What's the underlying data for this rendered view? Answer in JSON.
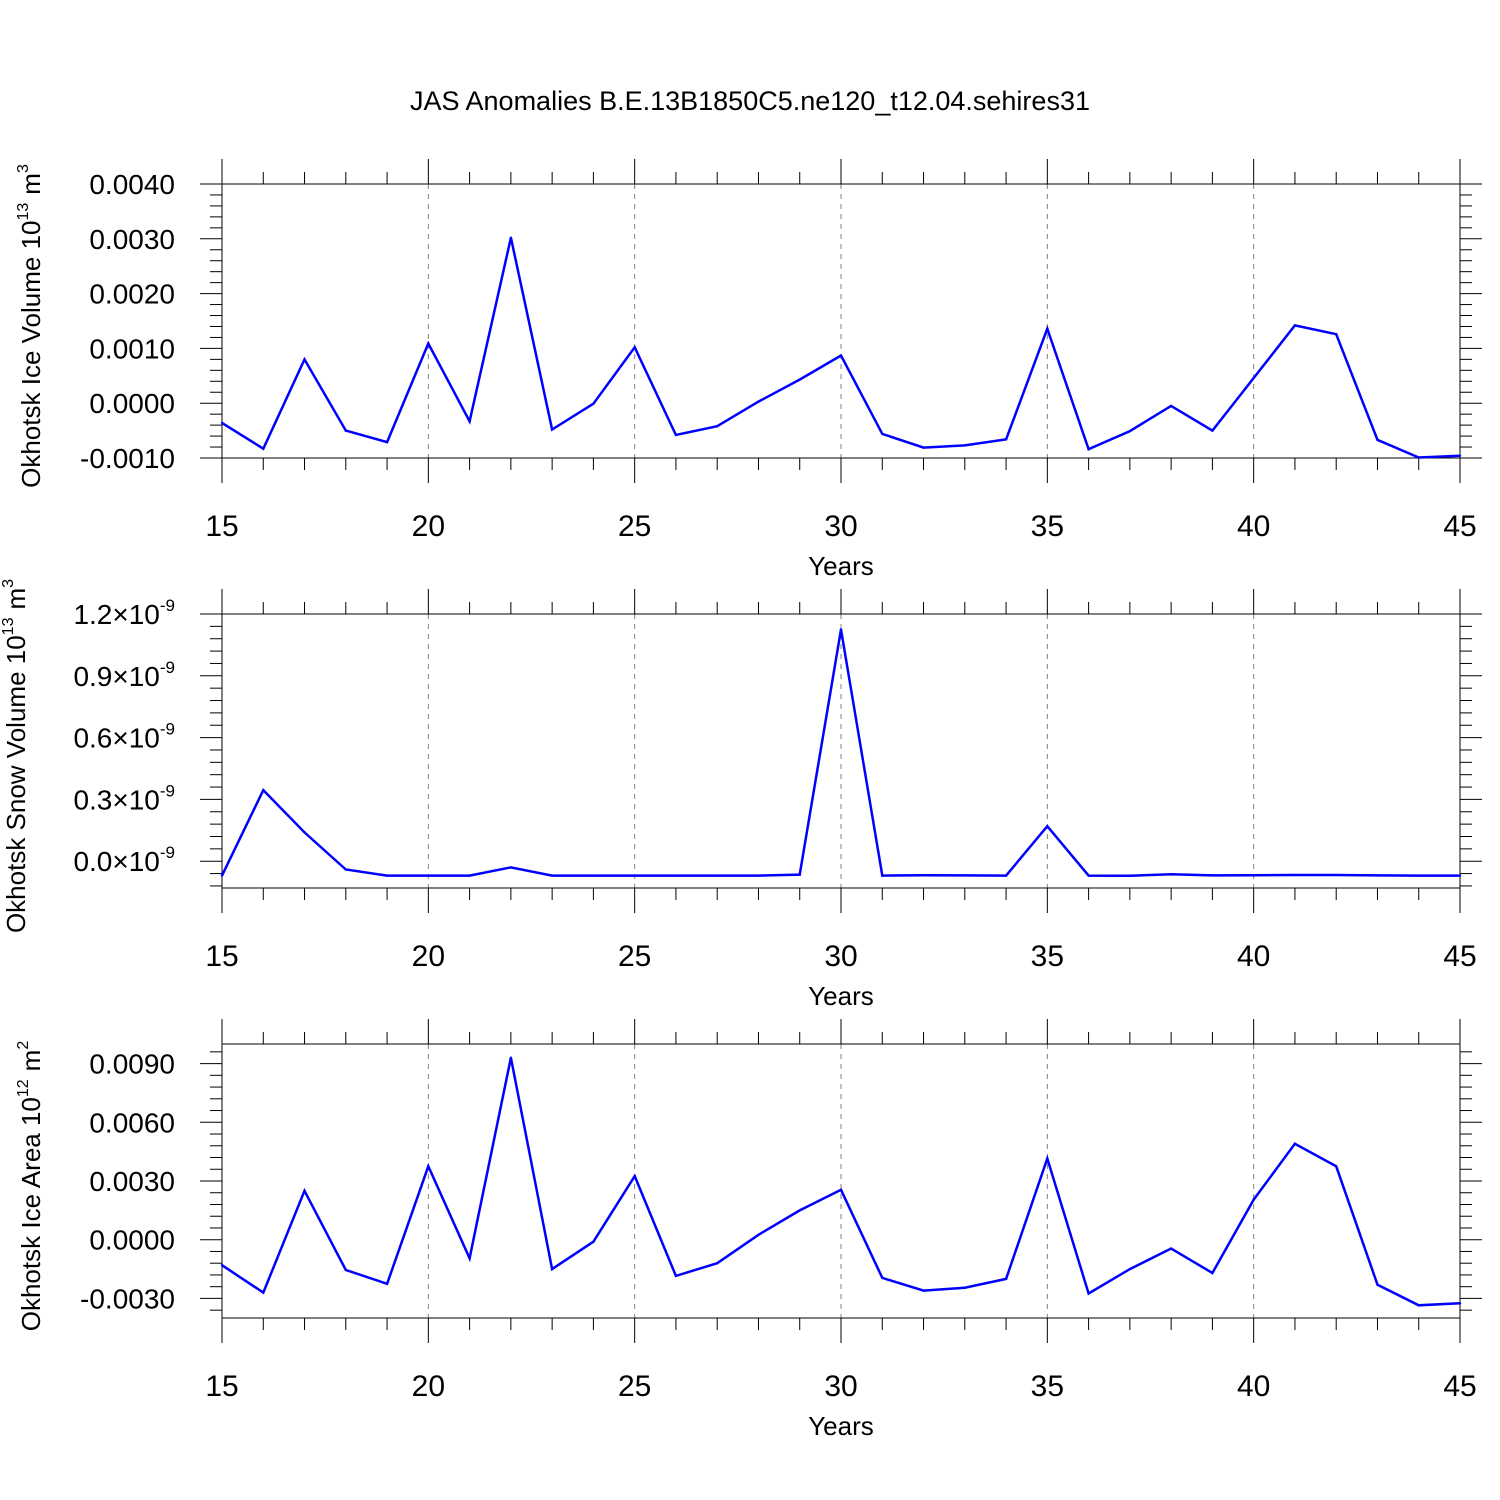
{
  "title": "JAS Anomalies B.E.13B1850C5.ne120_t12.04.sehires31",
  "colors": {
    "line": "#0000ff",
    "axis": "#000000",
    "grid": "#7f7f7f"
  },
  "chart_data": [
    {
      "type": "line",
      "ylabel": {
        "text": "Okhotsk Ice Volume 10",
        "exp": "13",
        "unit": "m",
        "unit_exp": "3"
      },
      "xlabel": "Years",
      "xlim": [
        15,
        45
      ],
      "ylim": [
        -0.001,
        0.004
      ],
      "x_ticks": [
        "15",
        "20",
        "25",
        "30",
        "35",
        "40",
        "45"
      ],
      "y_ticks": [
        {
          "value": 0.004,
          "label": "0.0040"
        },
        {
          "value": 0.003,
          "label": "0.0030"
        },
        {
          "value": 0.002,
          "label": "0.0020"
        },
        {
          "value": 0.001,
          "label": "0.0010"
        },
        {
          "value": 0.0,
          "label": "0.0000"
        },
        {
          "value": -0.001,
          "label": "-0.0010"
        }
      ],
      "grid": "x-dashed",
      "x": [
        15,
        16,
        17,
        18,
        19,
        20,
        21,
        22,
        23,
        24,
        25,
        26,
        27,
        28,
        29,
        30,
        31,
        32,
        33,
        34,
        35,
        36,
        37,
        38,
        39,
        40,
        41,
        42,
        43,
        44,
        45
      ],
      "values": [
        -0.00036,
        -0.00083,
        0.0008,
        -0.0005,
        -0.00071,
        0.00109,
        -0.00033,
        0.00302,
        -0.00048,
        -1e-05,
        0.00102,
        -0.00058,
        -0.00042,
        3e-05,
        0.00043,
        0.00087,
        -0.00056,
        -0.00081,
        -0.00077,
        -0.00066,
        0.00136,
        -0.00084,
        -0.00051,
        -5e-05,
        -0.0005,
        0.00046,
        0.00142,
        0.00126,
        -0.00067,
        -0.00099,
        -0.00096
      ]
    },
    {
      "type": "line",
      "ylabel": {
        "text": "Okhotsk Snow Volume 10",
        "exp": "13",
        "unit": "m",
        "unit_exp": "3"
      },
      "xlabel": "Years",
      "xlim": [
        15,
        45
      ],
      "ylim": [
        -1.3e-10,
        1.2e-09
      ],
      "x_ticks": [
        "15",
        "20",
        "25",
        "30",
        "35",
        "40",
        "45"
      ],
      "y_ticks": [
        {
          "value": 1.2e-09,
          "label": "1.2",
          "exp": "-9"
        },
        {
          "value": 9e-10,
          "label": "0.9",
          "exp": "-9"
        },
        {
          "value": 6e-10,
          "label": "0.6",
          "exp": "-9"
        },
        {
          "value": 3e-10,
          "label": "0.3",
          "exp": "-9"
        },
        {
          "value": 0.0,
          "label": "0.0",
          "exp": "-9"
        }
      ],
      "y_tick_times": "×10",
      "grid": "x-dashed",
      "x": [
        15,
        16,
        17,
        18,
        19,
        20,
        21,
        22,
        23,
        24,
        25,
        26,
        27,
        28,
        29,
        30,
        31,
        32,
        33,
        34,
        35,
        36,
        37,
        38,
        39,
        40,
        41,
        42,
        43,
        44,
        45
      ],
      "values": [
        -7e-11,
        3.45e-10,
        1.4e-10,
        -4e-11,
        -7e-11,
        -7e-11,
        -7e-11,
        -3e-11,
        -7e-11,
        -7e-11,
        -7e-11,
        -7e-11,
        -7e-11,
        -7e-11,
        -6.5e-11,
        1.125e-09,
        -7e-11,
        -6.8e-11,
        -6.9e-11,
        -7e-11,
        1.7e-10,
        -7e-11,
        -7.1e-11,
        -6.3e-11,
        -6.9e-11,
        -6.8e-11,
        -6.7e-11,
        -6.7e-11,
        -6.9e-11,
        -7e-11,
        -7e-11
      ]
    },
    {
      "type": "line",
      "ylabel": {
        "text": "Okhotsk Ice Area 10",
        "exp": "12",
        "unit": "m",
        "unit_exp": "2"
      },
      "xlabel": "Years",
      "xlim": [
        15,
        45
      ],
      "ylim": [
        -0.004,
        0.01
      ],
      "x_ticks": [
        "15",
        "20",
        "25",
        "30",
        "35",
        "40",
        "45"
      ],
      "y_ticks": [
        {
          "value": 0.009,
          "label": "0.0090"
        },
        {
          "value": 0.006,
          "label": "0.0060"
        },
        {
          "value": 0.003,
          "label": "0.0030"
        },
        {
          "value": 0.0,
          "label": "0.0000"
        },
        {
          "value": -0.003,
          "label": "-0.0030"
        }
      ],
      "grid": "x-dashed",
      "x": [
        15,
        16,
        17,
        18,
        19,
        20,
        21,
        22,
        23,
        24,
        25,
        26,
        27,
        28,
        29,
        30,
        31,
        32,
        33,
        34,
        35,
        36,
        37,
        38,
        39,
        40,
        41,
        42,
        43,
        44,
        45
      ],
      "values": [
        -0.0013,
        -0.0027,
        0.0025,
        -0.00155,
        -0.00225,
        0.00375,
        -0.00095,
        0.0093,
        -0.0015,
        -0.0001,
        0.00325,
        -0.00185,
        -0.0012,
        0.00025,
        0.0015,
        0.00255,
        -0.00195,
        -0.0026,
        -0.00245,
        -0.002,
        0.00415,
        -0.00275,
        -0.0015,
        -0.00045,
        -0.0017,
        0.00205,
        0.0049,
        0.00375,
        -0.0023,
        -0.00335,
        -0.00325
      ]
    }
  ]
}
